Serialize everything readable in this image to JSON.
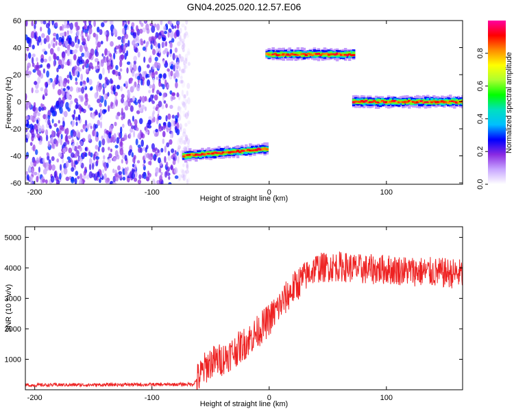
{
  "figure": {
    "title": "GN04.2025.020.12.57.E06"
  },
  "chart_data": [
    {
      "type": "heatmap",
      "name": "spectrogram",
      "xlabel": "Height of straight line (km)",
      "ylabel": "Frequency (Hz)",
      "xlim": [
        -208,
        165
      ],
      "ylim": [
        -61,
        60
      ],
      "xticks": [
        -200,
        -100,
        0,
        100
      ],
      "yticks": [
        -60,
        -40,
        -20,
        0,
        20,
        40,
        60
      ],
      "colorbar": {
        "label": "Normalized spectral amplitude",
        "range": [
          0,
          1
        ],
        "ticks": [
          0.0,
          0.2,
          0.4,
          0.6,
          0.8
        ],
        "colors": [
          "#ffffff",
          "#c8a6ff",
          "#8a2be2",
          "#0000ff",
          "#00bfff",
          "#00e0c0",
          "#00ff00",
          "#adff2f",
          "#ffff00",
          "#ff8c00",
          "#ff0000",
          "#ff00a0"
        ]
      },
      "noise_region": {
        "x_range": [
          -208,
          -73
        ],
        "y_range": [
          -61,
          60
        ],
        "amplitude": [
          0.05,
          0.3
        ]
      },
      "ridges": [
        {
          "x_range": [
            -73,
            -2
          ],
          "freq_start": -40,
          "freq_end": -35,
          "peak_amplitude": 0.95
        },
        {
          "x_range": [
            -2,
            72
          ],
          "freq_start": 35,
          "freq_end": 35,
          "peak_amplitude": 0.95
        },
        {
          "x_range": [
            72,
            165
          ],
          "freq_start": 0,
          "freq_end": 0,
          "peak_amplitude": 0.95
        }
      ],
      "grid": false
    },
    {
      "type": "line",
      "name": "snr",
      "xlabel": "Height of straight line (km)",
      "ylabel": "SNR (10 * v/v)",
      "xlim": [
        -208,
        165
      ],
      "ylim": [
        0,
        5350
      ],
      "xticks": [
        -200,
        -100,
        0,
        100
      ],
      "yticks": [
        1000,
        2000,
        3000,
        4000,
        5000
      ],
      "color": "#ee2222",
      "profile": [
        {
          "x": -208,
          "y": 150
        },
        {
          "x": -180,
          "y": 160
        },
        {
          "x": -150,
          "y": 160
        },
        {
          "x": -120,
          "y": 170
        },
        {
          "x": -90,
          "y": 170
        },
        {
          "x": -65,
          "y": 180
        },
        {
          "x": -60,
          "y": 400
        },
        {
          "x": -55,
          "y": 700
        },
        {
          "x": -50,
          "y": 900
        },
        {
          "x": -45,
          "y": 950
        },
        {
          "x": -40,
          "y": 1000
        },
        {
          "x": -30,
          "y": 1250
        },
        {
          "x": -20,
          "y": 1550
        },
        {
          "x": -10,
          "y": 1900
        },
        {
          "x": 0,
          "y": 2300
        },
        {
          "x": 10,
          "y": 2800
        },
        {
          "x": 20,
          "y": 3300
        },
        {
          "x": 30,
          "y": 3700
        },
        {
          "x": 40,
          "y": 4000
        },
        {
          "x": 60,
          "y": 4050
        },
        {
          "x": 80,
          "y": 3950
        },
        {
          "x": 100,
          "y": 3950
        },
        {
          "x": 120,
          "y": 3900
        },
        {
          "x": 140,
          "y": 3850
        },
        {
          "x": 165,
          "y": 3800
        }
      ],
      "grid": false
    }
  ]
}
